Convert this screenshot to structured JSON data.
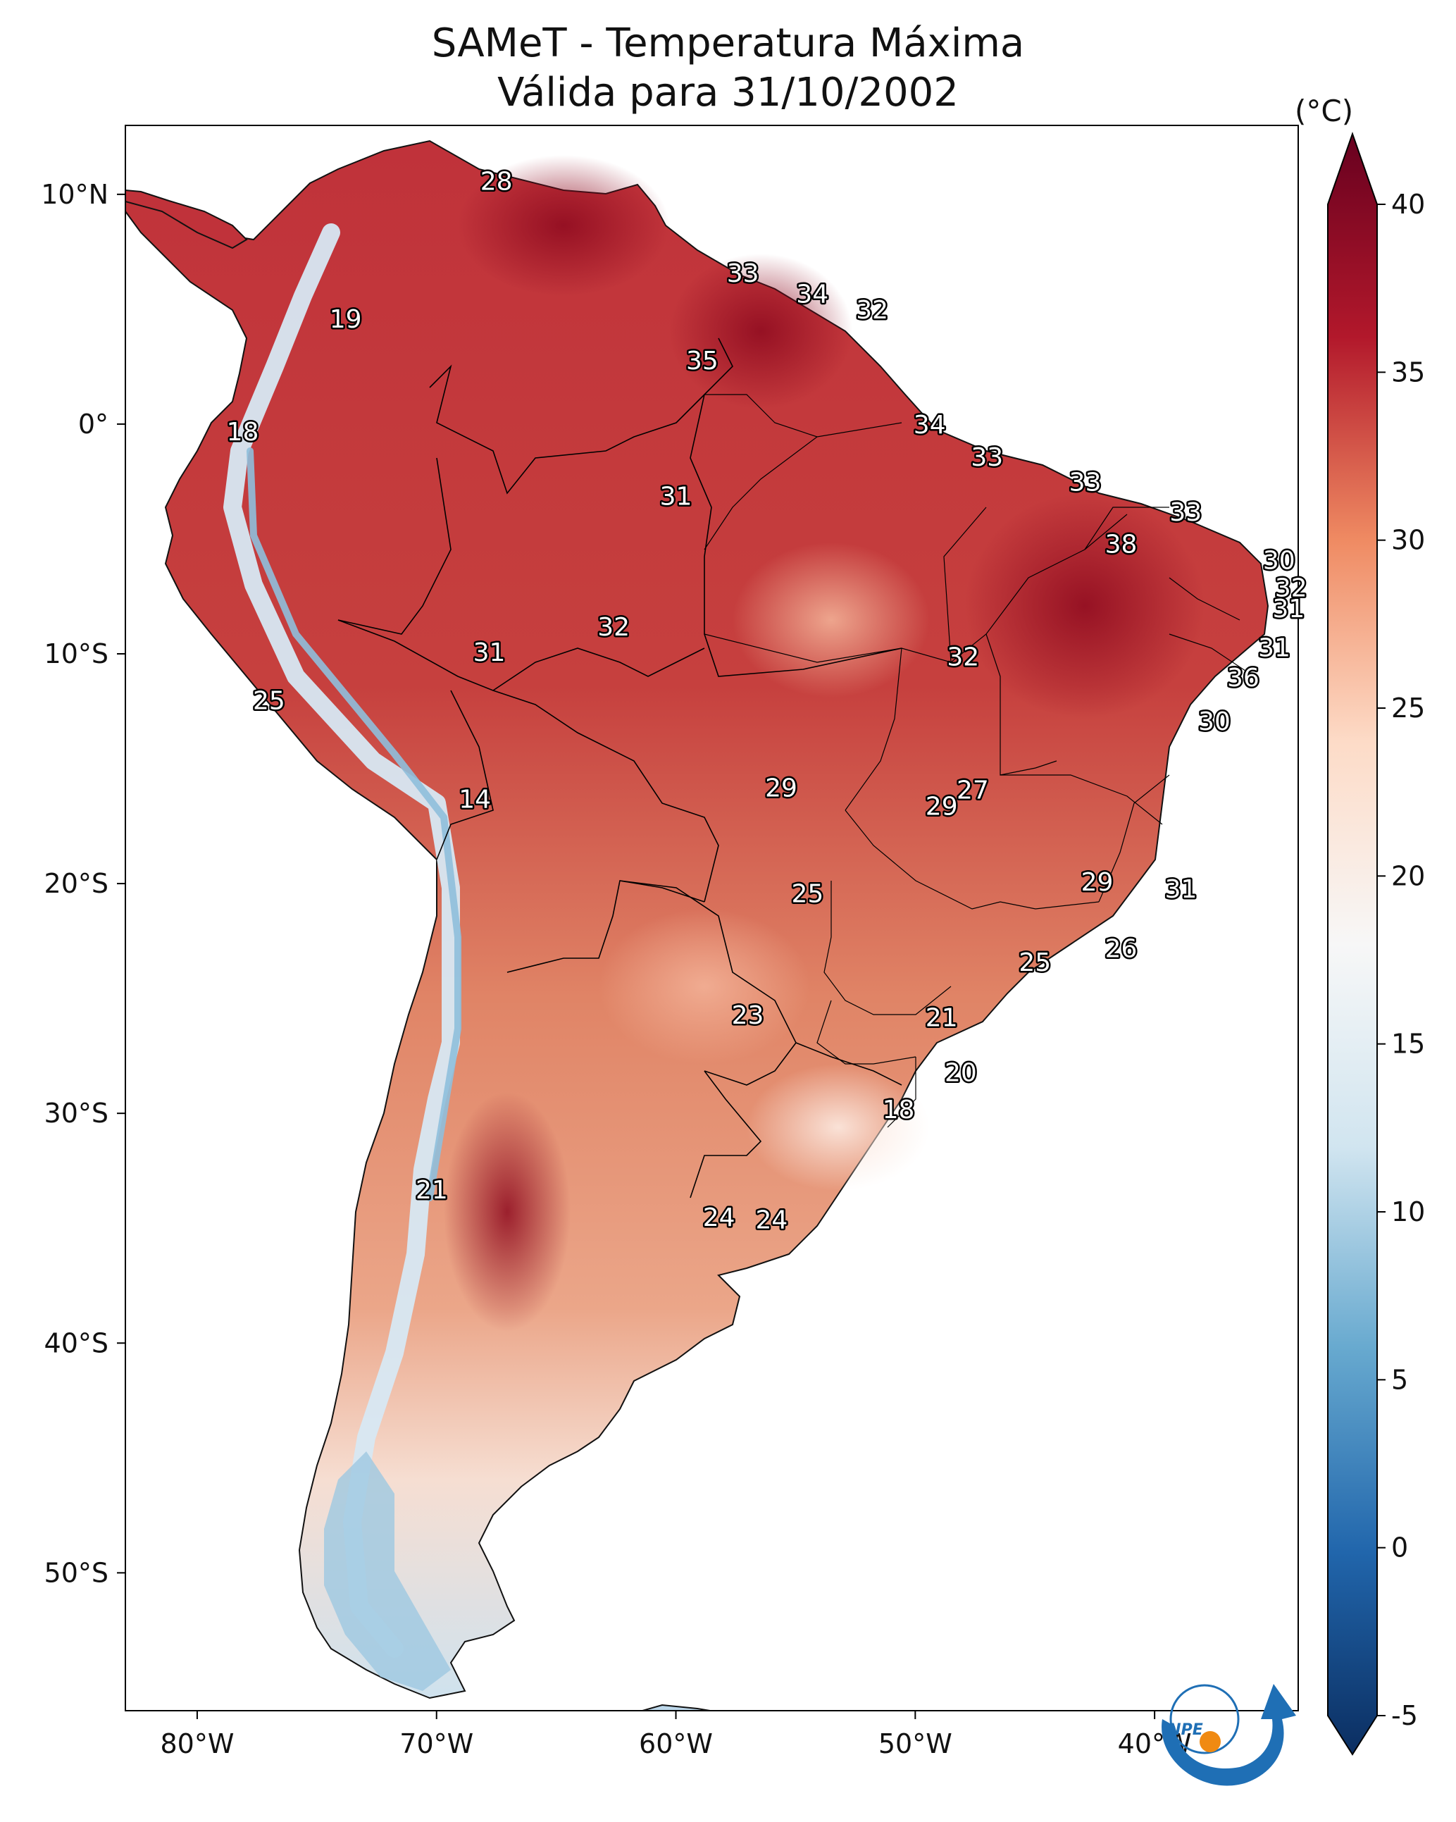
{
  "title": {
    "line1": "SAMeT - Temperatura Máxima",
    "line2": "Válida para 31/10/2002"
  },
  "axes": {
    "lon_ticks": [
      "80°W",
      "70°W",
      "60°W",
      "50°W",
      "40°W"
    ],
    "lat_ticks": [
      "10°N",
      "0°",
      "10°S",
      "20°S",
      "30°S",
      "40°S",
      "50°S"
    ],
    "lon_range": [
      -83,
      -34
    ],
    "lat_range": [
      -56,
      13
    ]
  },
  "colorbar": {
    "unit": "(°C)",
    "ticks": [
      "40",
      "35",
      "30",
      "25",
      "20",
      "15",
      "10",
      "5",
      "0",
      "-5"
    ],
    "min": -5,
    "max": 40,
    "colors": [
      "#0b2e61",
      "#2166ac",
      "#67a9cf",
      "#d1e5f0",
      "#f7f7f7",
      "#fddbc7",
      "#ef8a62",
      "#b2182b",
      "#67001f"
    ]
  },
  "logo": {
    "text": "INPE"
  },
  "map_labels": [
    {
      "value": "28",
      "lon": -67.5,
      "lat": 10.5
    },
    {
      "value": "19",
      "lon": -73.8,
      "lat": 4.5
    },
    {
      "value": "33",
      "lon": -57.2,
      "lat": 6.5
    },
    {
      "value": "34",
      "lon": -54.3,
      "lat": 5.6
    },
    {
      "value": "32",
      "lon": -51.8,
      "lat": 4.9
    },
    {
      "value": "35",
      "lon": -58.9,
      "lat": 2.7
    },
    {
      "value": "18",
      "lon": -78.1,
      "lat": -0.4
    },
    {
      "value": "34",
      "lon": -49.4,
      "lat": -0.1
    },
    {
      "value": "33",
      "lon": -47.0,
      "lat": -1.5
    },
    {
      "value": "33",
      "lon": -42.9,
      "lat": -2.6
    },
    {
      "value": "31",
      "lon": -60.0,
      "lat": -3.2
    },
    {
      "value": "33",
      "lon": -38.7,
      "lat": -3.9
    },
    {
      "value": "38",
      "lon": -41.4,
      "lat": -5.3
    },
    {
      "value": "30",
      "lon": -34.8,
      "lat": -6.0
    },
    {
      "value": "32",
      "lon": -34.3,
      "lat": -7.2
    },
    {
      "value": "31",
      "lon": -34.4,
      "lat": -8.1
    },
    {
      "value": "32",
      "lon": -62.6,
      "lat": -8.9
    },
    {
      "value": "31",
      "lon": -67.8,
      "lat": -10.0
    },
    {
      "value": "32",
      "lon": -48.0,
      "lat": -10.2
    },
    {
      "value": "31",
      "lon": -35.0,
      "lat": -9.8
    },
    {
      "value": "36",
      "lon": -36.3,
      "lat": -11.1
    },
    {
      "value": "25",
      "lon": -77.0,
      "lat": -12.1
    },
    {
      "value": "30",
      "lon": -37.5,
      "lat": -13.0
    },
    {
      "value": "14",
      "lon": -68.4,
      "lat": -16.4
    },
    {
      "value": "29",
      "lon": -55.6,
      "lat": -15.9
    },
    {
      "value": "27",
      "lon": -47.6,
      "lat": -16.0
    },
    {
      "value": "29",
      "lon": -48.9,
      "lat": -16.7
    },
    {
      "value": "29",
      "lon": -42.4,
      "lat": -20.0
    },
    {
      "value": "31",
      "lon": -38.9,
      "lat": -20.3
    },
    {
      "value": "25",
      "lon": -54.5,
      "lat": -20.5
    },
    {
      "value": "26",
      "lon": -41.4,
      "lat": -22.9
    },
    {
      "value": "25",
      "lon": -45.0,
      "lat": -23.5
    },
    {
      "value": "23",
      "lon": -57.0,
      "lat": -25.8
    },
    {
      "value": "21",
      "lon": -48.9,
      "lat": -25.9
    },
    {
      "value": "20",
      "lon": -48.1,
      "lat": -28.3
    },
    {
      "value": "18",
      "lon": -50.7,
      "lat": -29.9
    },
    {
      "value": "21",
      "lon": -70.2,
      "lat": -33.4
    },
    {
      "value": "24",
      "lon": -58.2,
      "lat": -34.6
    },
    {
      "value": "24",
      "lon": -56.0,
      "lat": -34.7
    }
  ]
}
